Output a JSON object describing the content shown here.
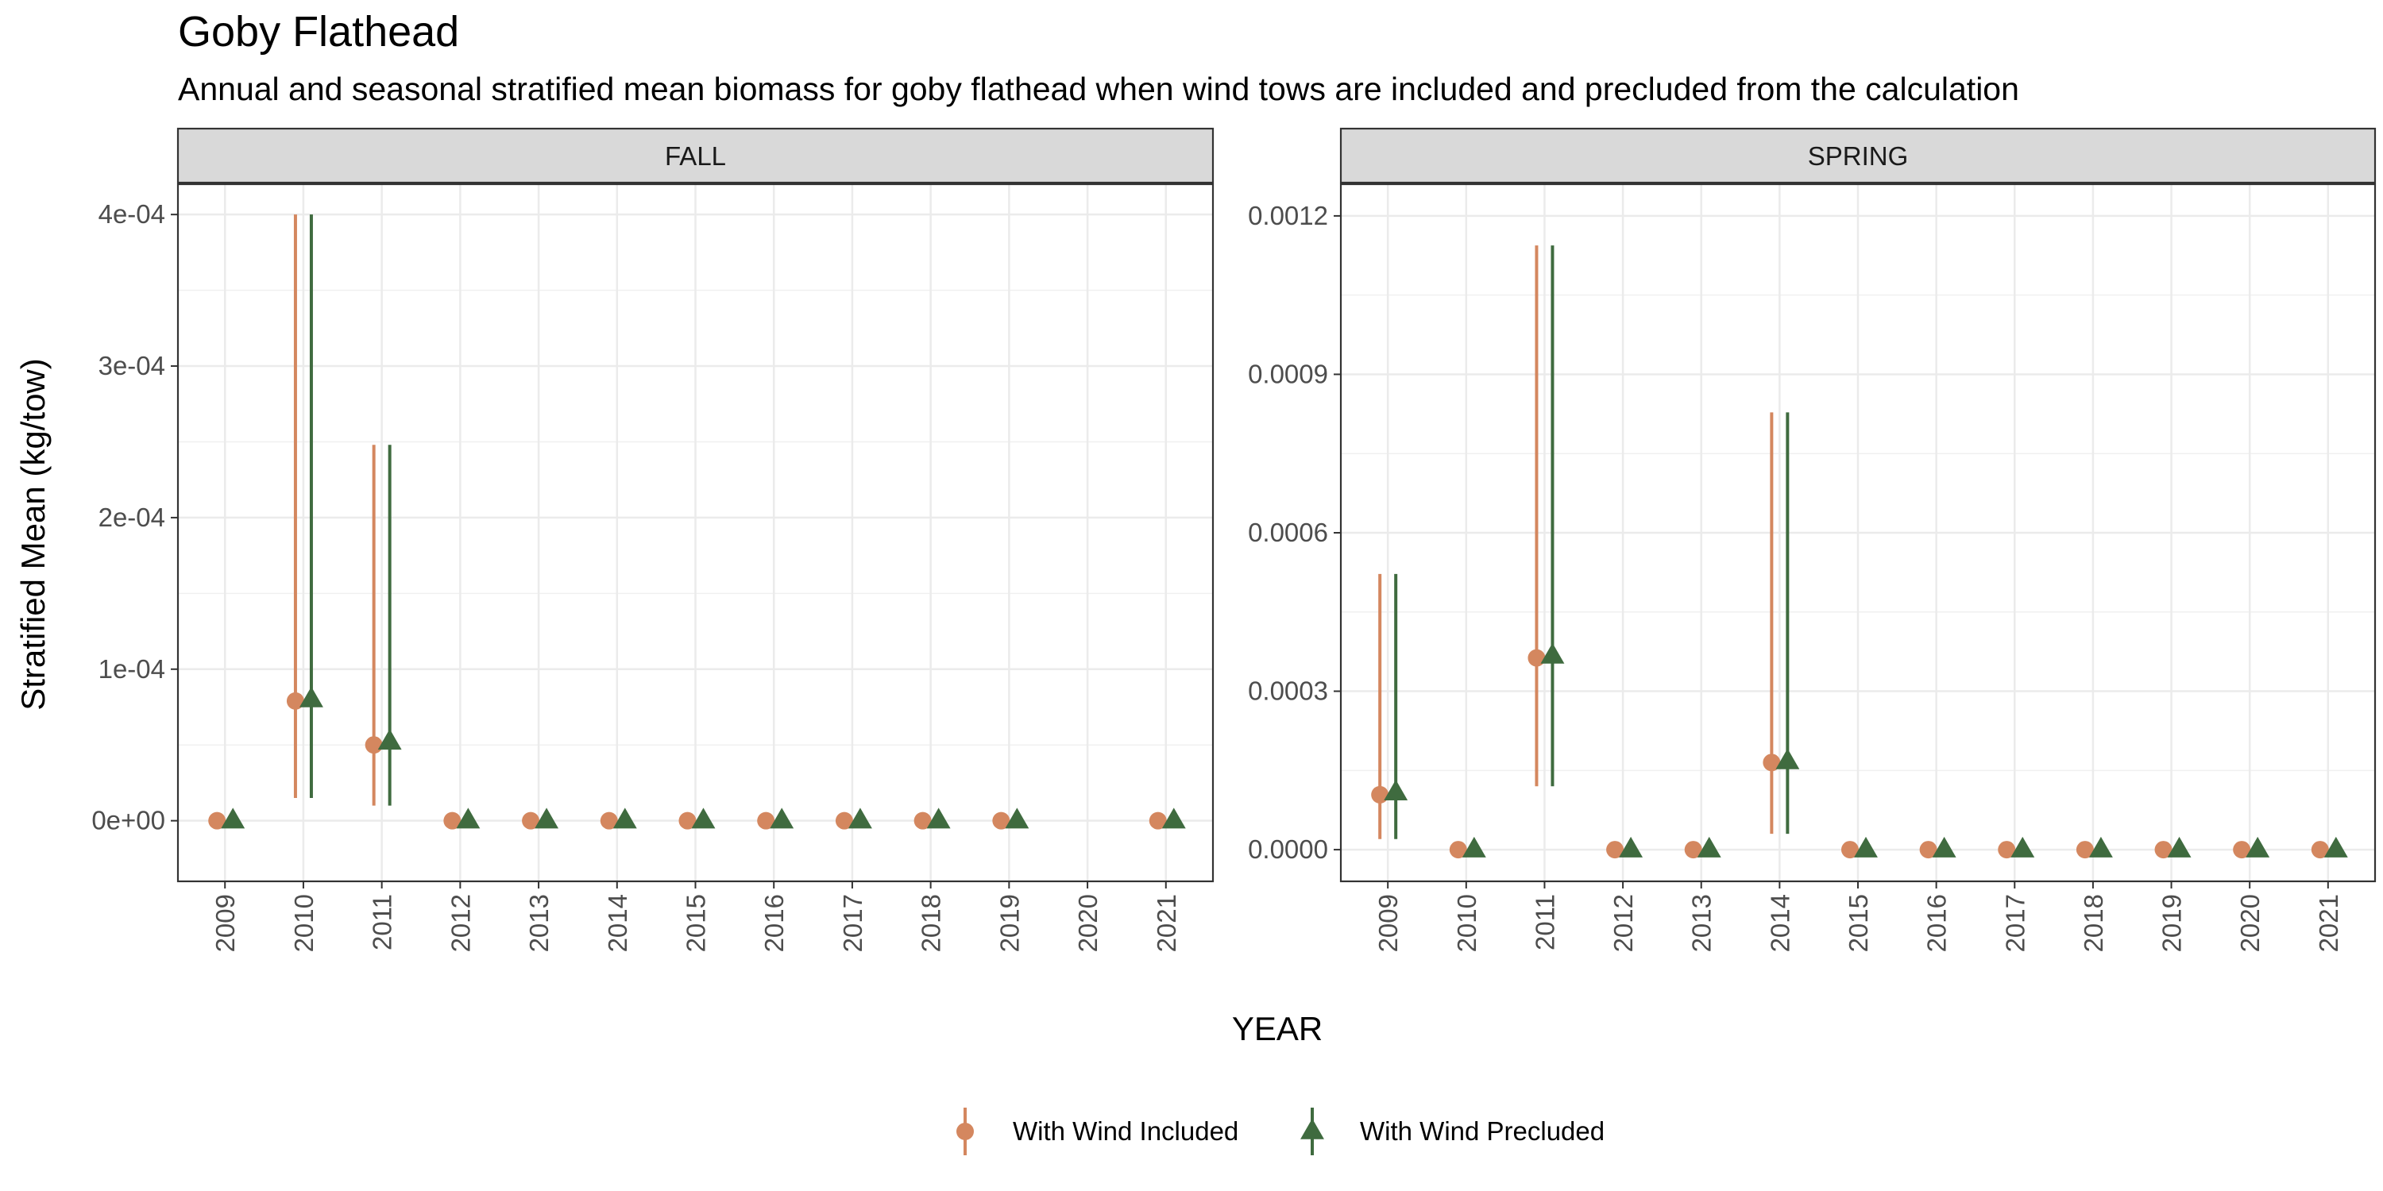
{
  "chart_data": {
    "type": "scatter",
    "title": "Goby Flathead",
    "subtitle": "Annual and seasonal stratified mean biomass for goby flathead when wind tows are included and precluded from the calculation",
    "xlabel": "YEAR",
    "ylabel": "Stratified Mean (kg/tow)",
    "legend_position": "bottom",
    "grid": true,
    "x": [
      "2009",
      "2010",
      "2011",
      "2012",
      "2013",
      "2014",
      "2015",
      "2016",
      "2017",
      "2018",
      "2019",
      "2020",
      "2021"
    ],
    "series_styles": [
      {
        "name": "With Wind Included",
        "color": "#D4875F",
        "shape": "circle"
      },
      {
        "name": "With Wind Precluded",
        "color": "#3F6B3F",
        "shape": "triangle"
      }
    ],
    "panels": [
      {
        "label": "FALL",
        "ylim": [
          -4e-05,
          0.00042
        ],
        "yticks": [
          0,
          0.0001,
          0.0002,
          0.0003,
          0.0004
        ],
        "ytick_labels": [
          "0e+00",
          "1e-04",
          "2e-04",
          "3e-04",
          "4e-04"
        ],
        "series": [
          {
            "name": "With Wind Included",
            "values": [
              0,
              7.9e-05,
              5e-05,
              0,
              0,
              0,
              0,
              0,
              0,
              0,
              0,
              null,
              0
            ],
            "lower": [
              0,
              1.5e-05,
              1e-05,
              0,
              0,
              0,
              0,
              0,
              0,
              0,
              0,
              null,
              0
            ],
            "upper": [
              0,
              0.0004,
              0.000248,
              0,
              0,
              0,
              0,
              0,
              0,
              0,
              0,
              null,
              0
            ]
          },
          {
            "name": "With Wind Precluded",
            "values": [
              0,
              8e-05,
              5.2e-05,
              0,
              0,
              0,
              0,
              0,
              0,
              0,
              0,
              null,
              0
            ],
            "lower": [
              0,
              1.5e-05,
              1e-05,
              0,
              0,
              0,
              0,
              0,
              0,
              0,
              0,
              null,
              0
            ],
            "upper": [
              0,
              0.0004,
              0.000248,
              0,
              0,
              0,
              0,
              0,
              0,
              0,
              0,
              null,
              0
            ]
          }
        ]
      },
      {
        "label": "SPRING",
        "ylim": [
          -6e-05,
          0.00126
        ],
        "yticks": [
          0,
          0.0003,
          0.0006,
          0.0009,
          0.0012
        ],
        "ytick_labels": [
          "0.0000",
          "0.0003",
          "0.0006",
          "0.0009",
          "0.0012"
        ],
        "series": [
          {
            "name": "With Wind Included",
            "values": [
              0.000104,
              0,
              0.000363,
              0,
              0,
              0.000165,
              0,
              0,
              0,
              0,
              0,
              0,
              0
            ],
            "lower": [
              2e-05,
              0,
              0.00012,
              0,
              0,
              3e-05,
              0,
              0,
              0,
              0,
              0,
              0,
              0
            ],
            "upper": [
              0.000522,
              0,
              0.001144,
              0,
              0,
              0.000828,
              0,
              0,
              0,
              0,
              0,
              0,
              0
            ]
          },
          {
            "name": "With Wind Precluded",
            "values": [
              0.000108,
              0,
              0.000367,
              0,
              0,
              0.000167,
              0,
              0,
              0,
              0,
              0,
              0,
              0
            ],
            "lower": [
              2e-05,
              0,
              0.00012,
              0,
              0,
              3e-05,
              0,
              0,
              0,
              0,
              0,
              0,
              0
            ],
            "upper": [
              0.000522,
              0,
              0.001144,
              0,
              0,
              0.000828,
              0,
              0,
              0,
              0,
              0,
              0,
              0
            ]
          }
        ]
      }
    ]
  }
}
